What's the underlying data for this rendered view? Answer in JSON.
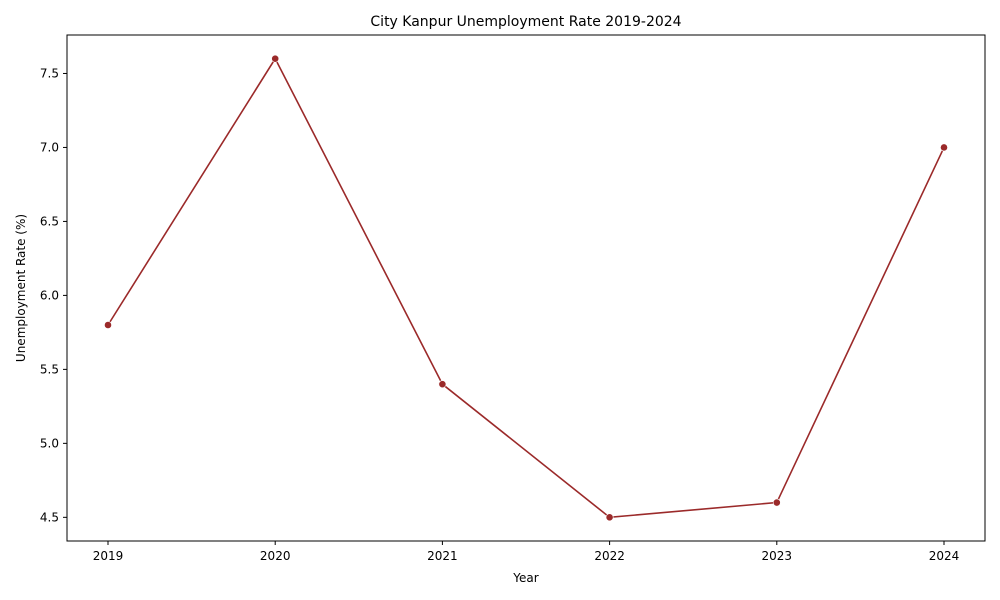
{
  "chart_data": {
    "type": "line",
    "title": "City Kanpur Unemployment Rate 2019-2024",
    "xlabel": "Year",
    "ylabel": "Unemployment Rate (%)",
    "x": [
      "2019",
      "2020",
      "2021",
      "2022",
      "2023",
      "2024"
    ],
    "series": [
      {
        "values": [
          5.8,
          7.6,
          5.4,
          4.5,
          4.6,
          7.0
        ]
      }
    ],
    "yticks": [
      "4.5",
      "5.0",
      "5.5",
      "6.0",
      "6.5",
      "7.0",
      "7.5"
    ],
    "ylim": [
      4.34,
      7.76
    ],
    "grid": false,
    "line_color": "#9b2a2a",
    "axis_color": "#000000"
  }
}
